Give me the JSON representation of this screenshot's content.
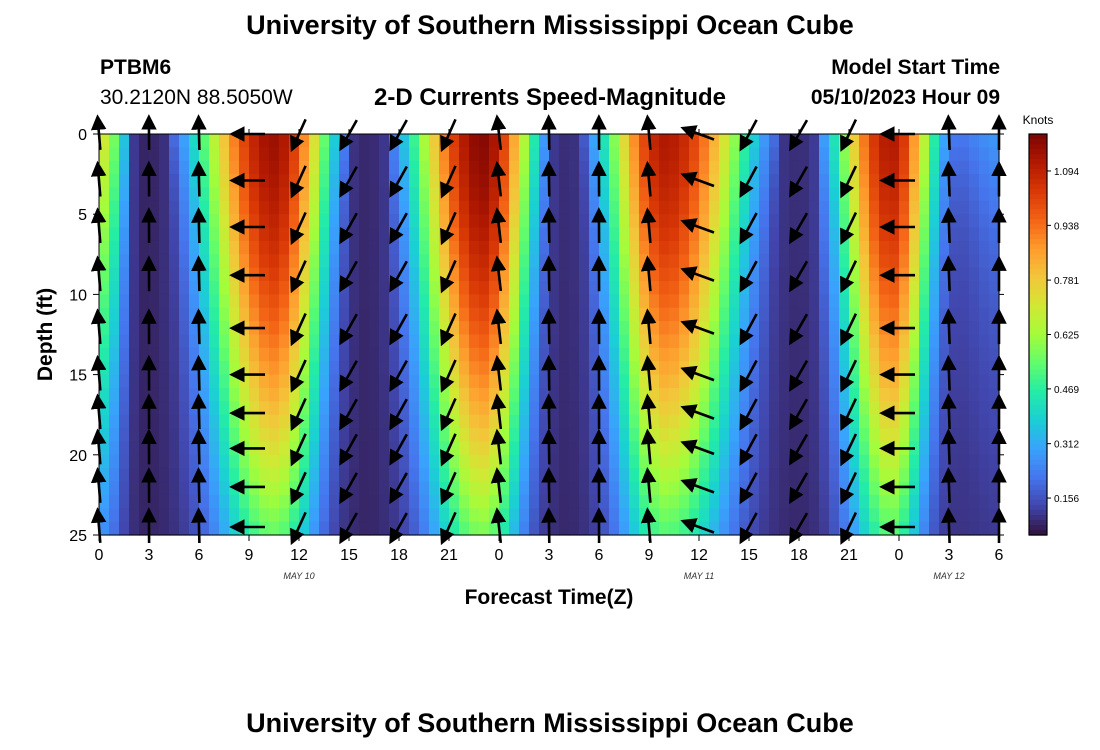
{
  "title": "University of Southern Mississippi Ocean Cube",
  "footer_title": "University of Southern Mississippi Ocean Cube",
  "station": {
    "id": "PTBM6",
    "coordinates": "30.2120N  88.5050W"
  },
  "model": {
    "label": "Model Start Time",
    "start": "05/10/2023 Hour 09"
  },
  "chart_data": {
    "type": "heatmap",
    "title": "2-D Currents Speed-Magnitude",
    "xlabel": "Forecast Time(Z)",
    "ylabel": "Depth (ft)",
    "x_range_hours": [
      0,
      54
    ],
    "x_ticks": [
      "0",
      "3",
      "6",
      "9",
      "12",
      "15",
      "18",
      "21",
      "0",
      "3",
      "6",
      "9",
      "12",
      "15",
      "18",
      "21",
      "0",
      "3",
      "6"
    ],
    "date_labels": [
      {
        "label": "MAY 10",
        "hour": 12
      },
      {
        "label": "MAY 11",
        "hour": 36
      },
      {
        "label": "MAY 12",
        "hour": 51
      }
    ],
    "y_range_ft": [
      0,
      25
    ],
    "y_ticks": [
      "0",
      "5",
      "10",
      "15",
      "20",
      "25"
    ],
    "y_inverted": true,
    "colorbar": {
      "label": "Knots",
      "ticks": [
        "1.094",
        "0.938",
        "0.781",
        "0.625",
        "0.469",
        "0.312",
        "0.156"
      ],
      "range": [
        0.05,
        1.2
      ],
      "colors": [
        "#30123b",
        "#4145ab",
        "#4675ed",
        "#39a2fc",
        "#1bcfd4",
        "#24eca6",
        "#61fc6c",
        "#a4fc3b",
        "#d1e834",
        "#f3c63a",
        "#fe9b2d",
        "#f36315",
        "#d93806",
        "#b11901",
        "#7a0403"
      ]
    },
    "speed_peaks_knots": [
      {
        "hour": 0.0,
        "speed": 0.72
      },
      {
        "hour": 2.8,
        "speed": 0.08
      },
      {
        "hour": 10.5,
        "speed": 1.15
      },
      {
        "hour": 16.0,
        "speed": 0.1
      },
      {
        "hour": 23.0,
        "speed": 1.18
      },
      {
        "hour": 28.0,
        "speed": 0.12
      },
      {
        "hour": 34.0,
        "speed": 1.12
      },
      {
        "hour": 42.0,
        "speed": 0.12
      },
      {
        "hour": 47.5,
        "speed": 1.12
      },
      {
        "hour": 51.5,
        "speed": 0.22
      },
      {
        "hour": 54.0,
        "speed": 0.28
      }
    ],
    "vector_depths_ft": [
      0,
      2.9,
      5.8,
      8.8,
      12.1,
      15.0,
      17.4,
      19.6,
      22.0,
      24.5
    ],
    "vector_hours": [
      0,
      3,
      6,
      9,
      12,
      15,
      18,
      21,
      24,
      27,
      30,
      33,
      36,
      39,
      42,
      45,
      48,
      51,
      54
    ]
  }
}
